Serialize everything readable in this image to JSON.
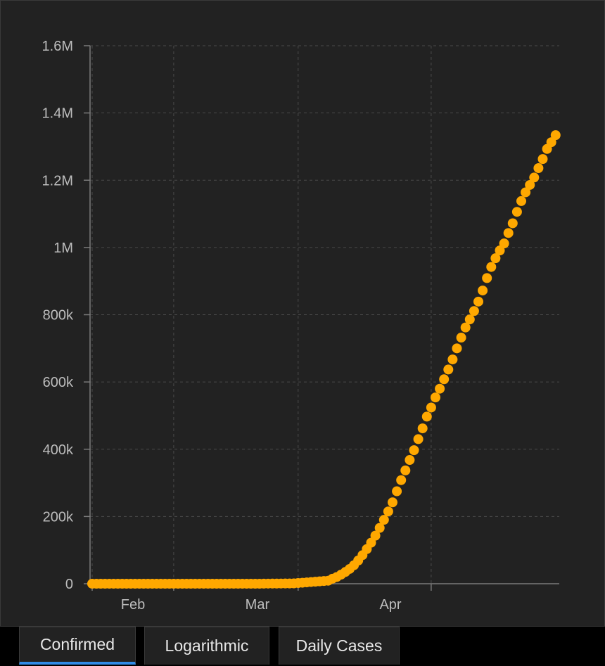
{
  "chart_data": {
    "type": "scatter",
    "title": "",
    "xlabel": "",
    "ylabel": "",
    "x_start_date": "2020-01-22",
    "x_tick_labels": [
      {
        "label": "Feb",
        "date": "2020-02-01"
      },
      {
        "label": "Mar",
        "date": "2020-03-01"
      },
      {
        "label": "Apr",
        "date": "2020-04-01"
      }
    ],
    "x_gridline_dates": [
      "2020-01-22",
      "2020-02-10",
      "2020-03-10",
      "2020-04-10"
    ],
    "y_ticks": [
      0,
      200000,
      400000,
      600000,
      800000,
      1000000,
      1200000,
      1400000,
      1600000
    ],
    "y_tick_labels": [
      "0",
      "200k",
      "400k",
      "600k",
      "800k",
      "1M",
      "1.2M",
      "1.4M",
      "1.6M"
    ],
    "ylim": [
      0,
      1600000
    ],
    "grid": true,
    "series": [
      {
        "name": "Confirmed",
        "color": "#ffa800",
        "values": [
          0,
          0,
          0,
          0,
          0,
          0,
          0,
          0,
          0,
          0,
          0,
          0,
          0,
          0,
          0,
          0,
          0,
          0,
          0,
          0,
          0,
          0,
          0,
          0,
          0,
          0,
          0,
          0,
          0,
          0,
          0,
          0,
          0,
          0,
          0,
          0,
          0,
          0,
          0,
          0,
          200,
          300,
          400,
          500,
          600,
          700,
          800,
          1000,
          2000,
          3000,
          4000,
          5000,
          6000,
          7000,
          8000,
          9000,
          15000,
          20000,
          27000,
          35000,
          44000,
          55000,
          69000,
          85000,
          103000,
          122000,
          143000,
          166000,
          190000,
          215000,
          242000,
          275000,
          308000,
          337000,
          368000,
          397000,
          430000,
          462000,
          497000,
          524000,
          554000,
          580000,
          608000,
          637000,
          667000,
          700000,
          732000,
          762000,
          786000,
          811000,
          839000,
          872000,
          909000,
          942000,
          968000,
          991000,
          1012000,
          1043000,
          1072000,
          1106000,
          1138000,
          1164000,
          1186000,
          1208000,
          1236000,
          1263000,
          1293000,
          1313000,
          1334000
        ]
      }
    ]
  },
  "tabs": [
    {
      "label": "Confirmed",
      "active": true
    },
    {
      "label": "Logarithmic",
      "active": false
    },
    {
      "label": "Daily Cases",
      "active": false
    }
  ]
}
